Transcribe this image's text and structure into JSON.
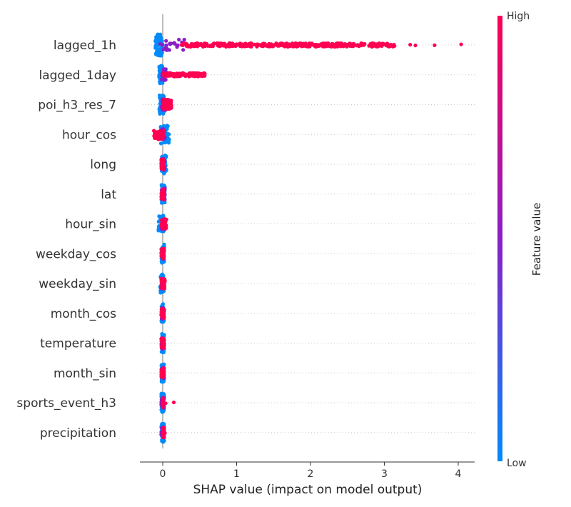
{
  "chart_data": {
    "type": "scatter",
    "subtype": "shap-beeswarm",
    "title": "",
    "xlabel": "SHAP value (impact on model output)",
    "xlim": [
      -0.3,
      4.25
    ],
    "xticks": [
      0,
      1,
      2,
      3,
      4
    ],
    "grid": "dotted horizontal rows",
    "colorbar": {
      "title": "Feature value",
      "high_label": "High",
      "low_label": "Low",
      "high_color": "#ff0052",
      "mid_color": "#8a1ec8",
      "low_color": "#008bfb",
      "placement": "right"
    },
    "features": [
      {
        "name": "lagged_1h",
        "low_range": [
          -0.1,
          0.0
        ],
        "high_range": [
          0.25,
          3.15
        ],
        "outliers_high": [
          3.35,
          3.42,
          3.68,
          4.04
        ],
        "mid_range": [
          -0.05,
          0.3
        ]
      },
      {
        "name": "lagged_1day",
        "low_range": [
          -0.05,
          0.0
        ],
        "high_range": [
          0.0,
          0.57
        ],
        "outliers_high": [],
        "mid_range": [
          -0.02,
          0.05
        ]
      },
      {
        "name": "poi_h3_res_7",
        "low_range": [
          -0.05,
          0.02
        ],
        "high_range": [
          0.0,
          0.12
        ],
        "outliers_high": [],
        "mid_range": [
          -0.02,
          0.05
        ]
      },
      {
        "name": "hour_cos",
        "low_range": [
          -0.03,
          0.09
        ],
        "high_range": [
          -0.12,
          0.02
        ],
        "outliers_high": [],
        "mid_range": [
          -0.03,
          0.03
        ]
      },
      {
        "name": "long",
        "low_range": [
          -0.02,
          0.05
        ],
        "high_range": [
          -0.02,
          0.02
        ],
        "outliers_high": [],
        "mid_range": [
          -0.02,
          0.03
        ]
      },
      {
        "name": "lat",
        "low_range": [
          -0.02,
          0.03
        ],
        "high_range": [
          -0.02,
          0.02
        ],
        "outliers_high": [],
        "mid_range": [
          -0.02,
          0.03
        ]
      },
      {
        "name": "hour_sin",
        "low_range": [
          -0.06,
          0.02
        ],
        "high_range": [
          -0.02,
          0.05
        ],
        "outliers_high": [],
        "mid_range": [
          -0.02,
          0.03
        ]
      },
      {
        "name": "weekday_cos",
        "low_range": [
          -0.02,
          0.02
        ],
        "high_range": [
          -0.02,
          0.02
        ],
        "outliers_high": [],
        "mid_range": [
          -0.02,
          0.02
        ]
      },
      {
        "name": "weekday_sin",
        "low_range": [
          -0.04,
          0.02
        ],
        "high_range": [
          -0.02,
          0.03
        ],
        "outliers_high": [],
        "mid_range": [
          -0.02,
          0.02
        ]
      },
      {
        "name": "month_cos",
        "low_range": [
          -0.02,
          0.02
        ],
        "high_range": [
          -0.02,
          0.02
        ],
        "outliers_high": [],
        "mid_range": [
          -0.02,
          0.02
        ]
      },
      {
        "name": "temperature",
        "low_range": [
          -0.02,
          0.02
        ],
        "high_range": [
          -0.02,
          0.02
        ],
        "outliers_high": [],
        "mid_range": [
          -0.02,
          0.02
        ]
      },
      {
        "name": "month_sin",
        "low_range": [
          -0.02,
          0.02
        ],
        "high_range": [
          -0.02,
          0.02
        ],
        "outliers_high": [],
        "mid_range": [
          -0.02,
          0.02
        ]
      },
      {
        "name": "sports_event_h3",
        "low_range": [
          -0.02,
          0.02
        ],
        "high_range": [
          0.0,
          0.0
        ],
        "outliers_high": [
          0.04,
          0.15
        ],
        "mid_range": [
          -0.02,
          0.02
        ]
      },
      {
        "name": "precipitation",
        "low_range": [
          -0.02,
          0.02
        ],
        "high_range": [
          0.0,
          0.02
        ],
        "outliers_high": [
          0.03
        ],
        "mid_range": [
          -0.02,
          0.02
        ]
      }
    ]
  }
}
